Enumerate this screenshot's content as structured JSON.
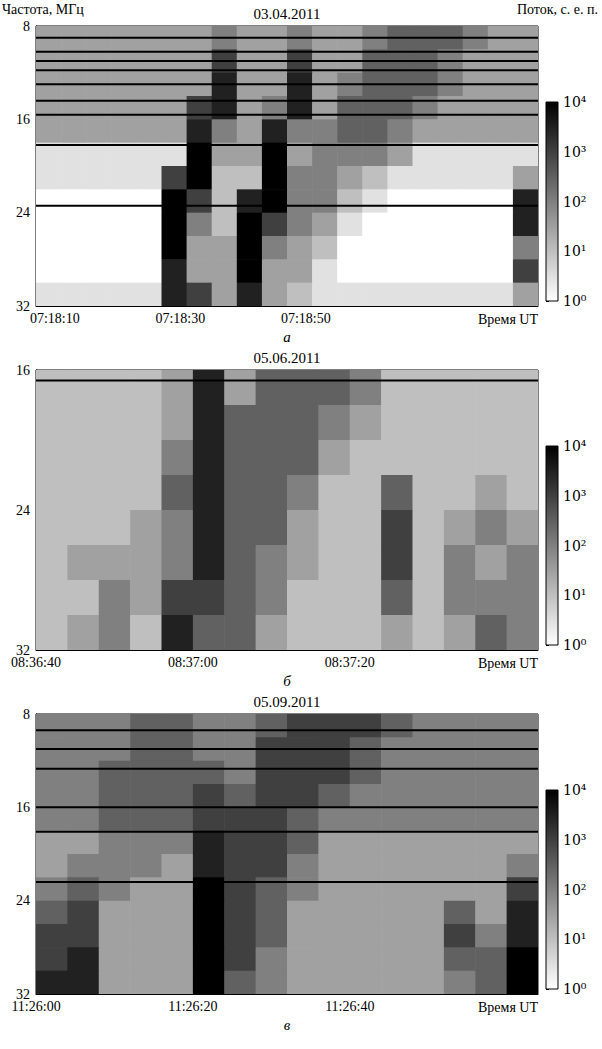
{
  "chart_data": [
    {
      "type": "heatmap",
      "title": "03.04.2011",
      "label": "а",
      "x_label": "Время UT",
      "y_label": "Частота, МГц",
      "xlim": [
        26287,
        26367
      ],
      "xticks": [
        {
          "value": 26290,
          "label": "07:18:10"
        },
        {
          "value": 26310,
          "label": "07:18:30"
        },
        {
          "value": 26330,
          "label": "07:18:50"
        }
      ],
      "ylim": [
        32,
        8
      ],
      "yticks": [
        8,
        16,
        24,
        32
      ],
      "x_bins": [
        26287,
        26291,
        26295,
        26299,
        26303,
        26307,
        26311,
        26315,
        26319,
        26323,
        26327,
        26331,
        26335,
        26339,
        26343,
        26347,
        26351,
        26355,
        26359,
        26363,
        26367
      ],
      "y_bins": [
        8,
        10,
        12,
        14,
        16,
        18,
        20,
        22,
        24,
        26,
        28,
        30,
        32
      ],
      "values": [
        [
          30,
          30,
          30,
          30,
          30,
          30,
          30,
          100,
          30,
          30,
          100,
          30,
          30,
          100,
          300,
          300,
          300,
          100,
          30,
          30
        ],
        [
          30,
          30,
          30,
          30,
          30,
          30,
          30,
          1000,
          30,
          30,
          1000,
          30,
          30,
          300,
          300,
          300,
          100,
          30,
          30,
          30
        ],
        [
          30,
          30,
          30,
          30,
          30,
          30,
          30,
          3000,
          30,
          30,
          3000,
          30,
          100,
          300,
          300,
          300,
          100,
          30,
          30,
          30
        ],
        [
          30,
          30,
          30,
          30,
          30,
          30,
          1000,
          3000,
          30,
          100,
          3000,
          30,
          300,
          300,
          300,
          100,
          30,
          30,
          30,
          30
        ],
        [
          30,
          30,
          30,
          30,
          30,
          30,
          3000,
          100,
          30,
          3000,
          100,
          100,
          300,
          300,
          100,
          30,
          30,
          30,
          30,
          30
        ],
        [
          3,
          3,
          3,
          3,
          3,
          3,
          10000,
          30,
          30,
          10000,
          30,
          100,
          100,
          100,
          30,
          3,
          3,
          3,
          3,
          3
        ],
        [
          3,
          3,
          3,
          3,
          3,
          1000,
          10000,
          10,
          10,
          10000,
          100,
          100,
          30,
          10,
          3,
          3,
          3,
          3,
          3,
          30
        ],
        [
          1,
          1,
          1,
          1,
          1,
          10000,
          1000,
          10,
          3000,
          10000,
          100,
          100,
          10,
          3,
          1,
          1,
          1,
          1,
          1,
          3000
        ],
        [
          1,
          1,
          1,
          1,
          1,
          10000,
          100,
          10,
          10000,
          1000,
          100,
          30,
          3,
          1,
          1,
          1,
          1,
          1,
          1,
          3000
        ],
        [
          1,
          1,
          1,
          1,
          1,
          10000,
          30,
          30,
          10000,
          100,
          30,
          10,
          1,
          1,
          1,
          1,
          1,
          1,
          1,
          100
        ],
        [
          1,
          1,
          1,
          1,
          1,
          3000,
          30,
          30,
          10000,
          30,
          30,
          3,
          1,
          1,
          1,
          1,
          1,
          1,
          1,
          1000
        ],
        [
          3,
          3,
          3,
          3,
          3,
          3000,
          1000,
          30,
          3000,
          30,
          10,
          3,
          3,
          3,
          3,
          3,
          3,
          3,
          3,
          30
        ]
      ],
      "interference": [
        9.0,
        10.2,
        11.0,
        11.8,
        13.0,
        14.4,
        15.6,
        18.2,
        23.4
      ],
      "colorbar": {
        "label": "Поток, с. е. п.",
        "range": [
          1,
          10000
        ],
        "log": true,
        "colors": [
          "#ffffff",
          "#000000"
        ],
        "ticks": [
          {
            "value": 1,
            "label": "10⁰"
          },
          {
            "value": 10,
            "label": "10¹"
          },
          {
            "value": 100,
            "label": "10²"
          },
          {
            "value": 1000,
            "label": "10³"
          },
          {
            "value": 10000,
            "label": "10⁴"
          }
        ]
      }
    },
    {
      "type": "heatmap",
      "title": "05.06.2011",
      "label": "б",
      "x_label": "Время UT",
      "xlim": [
        31000,
        31064
      ],
      "xticks": [
        {
          "value": 31000,
          "label": "08:36:40"
        },
        {
          "value": 31020,
          "label": "08:37:00"
        },
        {
          "value": 31040,
          "label": "08:37:20"
        }
      ],
      "ylim": [
        32,
        16
      ],
      "yticks": [
        16,
        24,
        32
      ],
      "x_bins": [
        31000,
        31004,
        31008,
        31012,
        31016,
        31020,
        31024,
        31028,
        31032,
        31036,
        31040,
        31044,
        31048,
        31052,
        31056,
        31060,
        31064
      ],
      "y_bins": [
        16,
        18,
        20,
        22,
        24,
        26,
        28,
        30,
        32
      ],
      "values": [
        [
          10,
          10,
          10,
          10,
          30,
          3000,
          30,
          300,
          300,
          300,
          100,
          10,
          10,
          10,
          10,
          10
        ],
        [
          10,
          10,
          10,
          10,
          30,
          3000,
          300,
          300,
          300,
          100,
          30,
          10,
          10,
          10,
          10,
          10
        ],
        [
          10,
          10,
          10,
          10,
          100,
          3000,
          300,
          300,
          300,
          30,
          10,
          10,
          10,
          10,
          10,
          10
        ],
        [
          10,
          10,
          10,
          10,
          300,
          3000,
          300,
          300,
          100,
          10,
          10,
          300,
          10,
          10,
          30,
          10
        ],
        [
          10,
          10,
          10,
          30,
          100,
          3000,
          300,
          300,
          30,
          10,
          10,
          1000,
          10,
          30,
          100,
          30
        ],
        [
          10,
          30,
          30,
          30,
          100,
          3000,
          300,
          100,
          30,
          10,
          10,
          1000,
          10,
          100,
          30,
          100
        ],
        [
          10,
          10,
          100,
          30,
          1000,
          1000,
          300,
          100,
          10,
          10,
          10,
          300,
          10,
          100,
          100,
          100
        ],
        [
          10,
          30,
          100,
          10,
          3000,
          300,
          300,
          30,
          10,
          10,
          10,
          30,
          10,
          30,
          300,
          100
        ]
      ],
      "interference": [
        16.6
      ],
      "colorbar": {
        "range": [
          1,
          10000
        ],
        "log": true,
        "colors": [
          "#ffffff",
          "#000000"
        ],
        "ticks": [
          {
            "value": 1,
            "label": "10⁰"
          },
          {
            "value": 10,
            "label": "10¹"
          },
          {
            "value": 100,
            "label": "10²"
          },
          {
            "value": 1000,
            "label": "10³"
          },
          {
            "value": 10000,
            "label": "10⁴"
          }
        ]
      }
    },
    {
      "type": "heatmap",
      "title": "05.09.2011",
      "label": "в",
      "x_label": "Время UT",
      "xlim": [
        41160,
        41224
      ],
      "xticks": [
        {
          "value": 41160,
          "label": "11:26:00"
        },
        {
          "value": 41180,
          "label": "11:26:20"
        },
        {
          "value": 41200,
          "label": "11:26:40"
        }
      ],
      "ylim": [
        32,
        8
      ],
      "yticks": [
        8,
        16,
        24,
        32
      ],
      "x_bins": [
        41160,
        41164,
        41168,
        41172,
        41176,
        41180,
        41184,
        41188,
        41192,
        41196,
        41200,
        41204,
        41208,
        41212,
        41216,
        41220,
        41224
      ],
      "y_bins": [
        8,
        10,
        12,
        14,
        16,
        18,
        20,
        22,
        24,
        26,
        28,
        30,
        32
      ],
      "values": [
        [
          100,
          100,
          100,
          300,
          300,
          100,
          100,
          300,
          1000,
          1000,
          1000,
          300,
          100,
          100,
          100,
          100
        ],
        [
          100,
          100,
          100,
          300,
          300,
          100,
          100,
          1000,
          1000,
          1000,
          300,
          100,
          100,
          100,
          100,
          100
        ],
        [
          100,
          100,
          300,
          300,
          300,
          300,
          100,
          1000,
          1000,
          1000,
          300,
          100,
          100,
          100,
          100,
          100
        ],
        [
          100,
          100,
          300,
          300,
          300,
          1000,
          300,
          1000,
          1000,
          300,
          100,
          100,
          100,
          100,
          100,
          100
        ],
        [
          100,
          100,
          300,
          300,
          300,
          1000,
          1000,
          1000,
          300,
          100,
          100,
          100,
          100,
          100,
          100,
          100
        ],
        [
          30,
          30,
          100,
          100,
          100,
          3000,
          1000,
          1000,
          300,
          30,
          30,
          30,
          30,
          30,
          30,
          30
        ],
        [
          30,
          100,
          100,
          100,
          30,
          3000,
          1000,
          1000,
          100,
          30,
          30,
          30,
          30,
          30,
          30,
          100
        ],
        [
          100,
          300,
          100,
          30,
          30,
          10000,
          1000,
          300,
          100,
          30,
          30,
          30,
          30,
          30,
          30,
          1000
        ],
        [
          300,
          1000,
          30,
          30,
          30,
          10000,
          1000,
          300,
          30,
          30,
          30,
          30,
          30,
          300,
          30,
          3000
        ],
        [
          1000,
          1000,
          30,
          30,
          30,
          10000,
          1000,
          300,
          30,
          30,
          30,
          30,
          30,
          1000,
          100,
          3000
        ],
        [
          1000,
          3000,
          30,
          30,
          30,
          10000,
          1000,
          100,
          30,
          30,
          30,
          30,
          30,
          300,
          300,
          10000
        ],
        [
          3000,
          3000,
          30,
          30,
          30,
          10000,
          300,
          100,
          30,
          30,
          30,
          30,
          30,
          100,
          300,
          10000
        ]
      ],
      "interference": [
        9.4,
        11.0,
        12.7,
        16.0,
        18.1,
        22.4
      ],
      "colorbar": {
        "range": [
          1,
          10000
        ],
        "log": true,
        "colors": [
          "#ffffff",
          "#000000"
        ],
        "ticks": [
          {
            "value": 1,
            "label": "10⁰"
          },
          {
            "value": 10,
            "label": "10¹"
          },
          {
            "value": 100,
            "label": "10²"
          },
          {
            "value": 1000,
            "label": "10³"
          },
          {
            "value": 10000,
            "label": "10⁴"
          }
        ]
      }
    }
  ]
}
